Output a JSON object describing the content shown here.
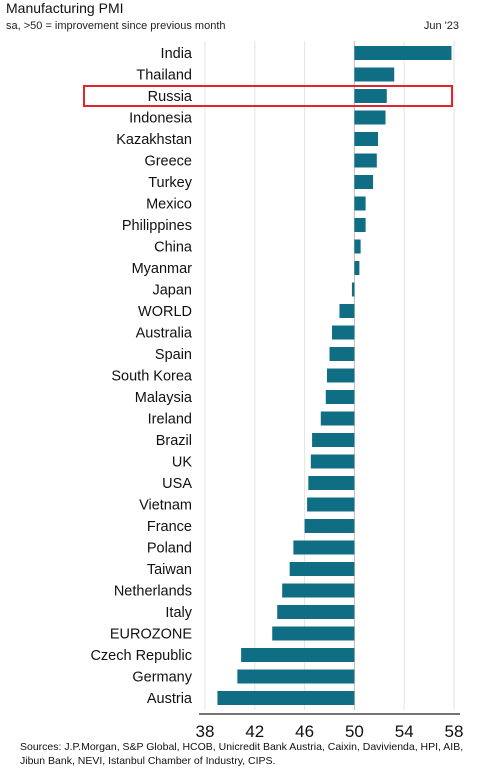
{
  "header": {
    "title": "Manufacturing PMI",
    "subtitle": "sa, >50 = improvement since previous month",
    "date": "Jun '23"
  },
  "footer": {
    "sources": "Sources: J.P.Morgan, S&P Global, HCOB, Unicredit Bank Austria, Caixin, Davivienda, HPI, AIB, Jibun Bank, NEVI, Istanbul Chamber of Industry, CIPS."
  },
  "colors": {
    "bar": "#0f6e84",
    "highlight": "#e0252b",
    "axis": "#cccccc"
  },
  "chart_data": {
    "type": "bar",
    "orientation": "horizontal",
    "baseline": 50,
    "categories": [
      "India",
      "Thailand",
      "Russia",
      "Indonesia",
      "Kazakhstan",
      "Greece",
      "Turkey",
      "Mexico",
      "Philippines",
      "China",
      "Myanmar",
      "Japan",
      "WORLD",
      "Australia",
      "Spain",
      "South Korea",
      "Malaysia",
      "Ireland",
      "Brazil",
      "UK",
      "USA",
      "Vietnam",
      "France",
      "Poland",
      "Taiwan",
      "Netherlands",
      "Italy",
      "EUROZONE",
      "Czech Republic",
      "Germany",
      "Austria"
    ],
    "values": [
      57.8,
      53.2,
      52.6,
      52.5,
      51.9,
      51.8,
      51.5,
      50.9,
      50.9,
      50.5,
      50.4,
      49.8,
      48.8,
      48.2,
      48.0,
      47.8,
      47.7,
      47.3,
      46.6,
      46.5,
      46.3,
      46.2,
      46.0,
      45.1,
      44.8,
      44.2,
      43.8,
      43.4,
      40.9,
      40.6,
      39.0
    ],
    "highlighted": [
      "Russia"
    ],
    "xlim": [
      38,
      58
    ],
    "xticks": [
      38,
      42,
      46,
      50,
      54,
      58
    ]
  }
}
